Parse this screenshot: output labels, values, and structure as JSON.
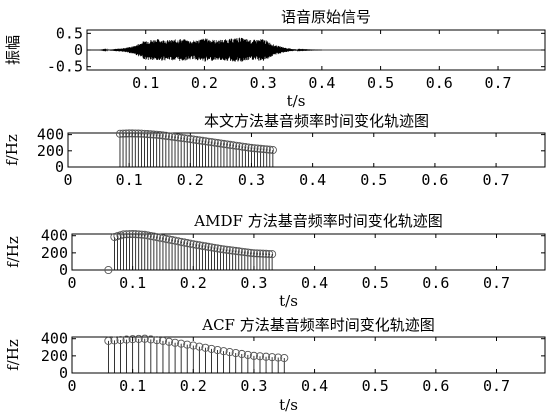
{
  "chart_data": [
    {
      "type": "line",
      "title": "语音原始信号",
      "ylabel": "振幅",
      "xlabel": "t/s",
      "xlim": [
        0,
        0.78
      ],
      "ylim": [
        -0.6,
        0.6
      ],
      "xticks": [
        "0.1",
        "0.2",
        "0.3",
        "0.4",
        "0.5",
        "0.6",
        "0.7"
      ],
      "yticks": [
        "0.5",
        "0",
        "-0.5"
      ],
      "envelope": {
        "x": [
          0.0,
          0.02,
          0.04,
          0.06,
          0.08,
          0.1,
          0.12,
          0.14,
          0.16,
          0.18,
          0.2,
          0.22,
          0.24,
          0.26,
          0.28,
          0.3,
          0.32,
          0.34,
          0.36,
          0.4
        ],
        "amp": [
          0.0,
          0.0,
          0.02,
          0.05,
          0.12,
          0.3,
          0.33,
          0.3,
          0.34,
          0.28,
          0.36,
          0.3,
          0.33,
          0.38,
          0.3,
          0.34,
          0.15,
          0.06,
          0.01,
          0.0
        ]
      }
    },
    {
      "type": "stem",
      "title": "本文方法基音频率时间变化轨迹图",
      "ylabel": "f/Hz",
      "xlabel": "",
      "xlim": [
        0,
        0.78
      ],
      "ylim": [
        0,
        420
      ],
      "xticks": [
        "0",
        "0.1",
        "0.2",
        "0.3",
        "0.4",
        "0.5",
        "0.6",
        "0.7"
      ],
      "yticks": [
        "400",
        "200",
        "0"
      ],
      "x_start": 0.085,
      "x_end": 0.335,
      "step": 0.005,
      "track": {
        "x": [
          0.085,
          0.1,
          0.12,
          0.15,
          0.2,
          0.25,
          0.3,
          0.335
        ],
        "y": [
          410,
          415,
          412,
          395,
          345,
          290,
          235,
          210
        ]
      }
    },
    {
      "type": "stem",
      "title": "AMDF 方法基音频率时间变化轨迹图",
      "ylabel": "f/Hz",
      "xlabel": "t/s",
      "xlim": [
        0,
        0.78
      ],
      "ylim": [
        0,
        420
      ],
      "xticks": [
        "0",
        "0.1",
        "0.2",
        "0.3",
        "0.4",
        "0.5",
        "0.6",
        "0.7"
      ],
      "yticks": [
        "400",
        "200",
        "0"
      ],
      "x_start": 0.07,
      "x_end": 0.33,
      "step": 0.005,
      "outlier": {
        "x": 0.06,
        "y": 0
      },
      "track": {
        "x": [
          0.07,
          0.085,
          0.1,
          0.12,
          0.15,
          0.2,
          0.25,
          0.3,
          0.33
        ],
        "y": [
          385,
          415,
          420,
          410,
          370,
          300,
          240,
          195,
          185
        ]
      }
    },
    {
      "type": "stem",
      "title": "ACF 方法基音频率时间变化轨迹图",
      "ylabel": "f/Hz",
      "xlabel": "t/s",
      "xlim": [
        0,
        0.78
      ],
      "ylim": [
        0,
        420
      ],
      "xticks": [
        "0",
        "0.1",
        "0.2",
        "0.3",
        "0.4",
        "0.5",
        "0.6",
        "0.7"
      ],
      "yticks": [
        "400",
        "200",
        "0"
      ],
      "x_start": 0.06,
      "x_end": 0.35,
      "step": 0.01,
      "track": {
        "x": [
          0.06,
          0.08,
          0.1,
          0.12,
          0.15,
          0.2,
          0.25,
          0.3,
          0.35
        ],
        "y": [
          375,
          385,
          395,
          400,
          375,
          320,
          255,
          200,
          175
        ]
      }
    }
  ]
}
